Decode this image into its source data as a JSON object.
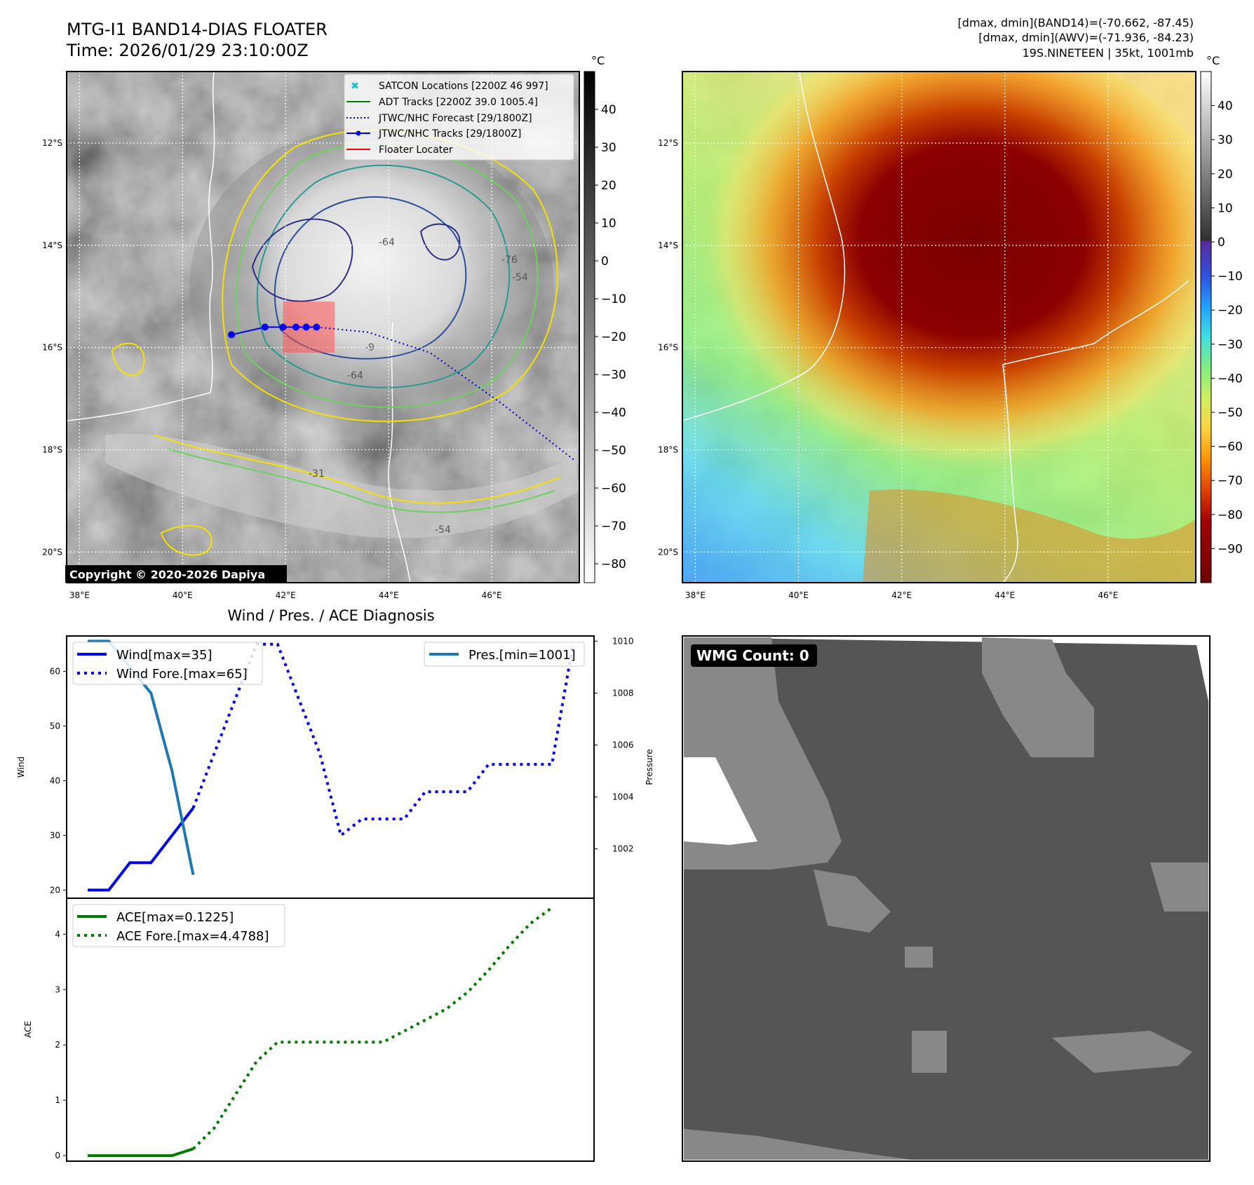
{
  "header": {
    "title_line1": "MTG-I1 BAND14-DIAS FLOATER",
    "title_line2": "Time: 2026/01/29 23:10:00Z",
    "info_line1": "[dmax, dmin](BAND14)=(-70.662, -87.45)",
    "info_line2": "[dmax, dmin](AWV)=(-71.936, -84.23)",
    "info_line3": "19S.NINETEEN | 35kt, 1001mb"
  },
  "map_axes": {
    "lon_ticks": [
      "38°E",
      "40°E",
      "42°E",
      "44°E",
      "46°E"
    ],
    "lon_values": [
      38,
      40,
      42,
      44,
      46
    ],
    "lat_ticks": [
      "12°S",
      "14°S",
      "16°S",
      "18°S",
      "20°S"
    ],
    "lat_values": [
      -12,
      -14,
      -16,
      -18,
      -20
    ],
    "lon_range": [
      37.75,
      47.7
    ],
    "lat_range": [
      -10.6,
      -20.6
    ]
  },
  "colorbar_left": {
    "unit": "°C",
    "ticks": [
      "40",
      "30",
      "20",
      "10",
      "0",
      "−10",
      "−20",
      "−30",
      "−40",
      "−50",
      "−60",
      "−70",
      "−80"
    ],
    "range": [
      -85,
      50
    ]
  },
  "colorbar_right": {
    "unit": "°C",
    "ticks": [
      "40",
      "30",
      "20",
      "10",
      "0",
      "−10",
      "−20",
      "−30",
      "−40",
      "−50",
      "−60",
      "−70",
      "−80",
      "−90"
    ],
    "range": [
      -100,
      50
    ]
  },
  "legend_map": {
    "items": [
      "SATCON Locations [2200Z 46 997]",
      "ADT Tracks [2200Z 39.0 1005.4]",
      "JTWC/NHC Forecast [29/1800Z]",
      "JTWC/NHC Tracks [29/1800Z]",
      "Floater Locater"
    ],
    "colors": [
      "#17becf",
      "#007a00",
      "#0000cc",
      "#0000ee",
      "#ff0000"
    ]
  },
  "contour_labels": [
    "-64",
    "-76",
    "-54",
    "-64",
    "-9",
    "-31",
    "-54"
  ],
  "copyright": "Copyright © 2020-2026 Dapiya",
  "track": {
    "observed": [
      [
        40.95,
        -15.75
      ],
      [
        41.6,
        -15.6
      ],
      [
        41.95,
        -15.6
      ],
      [
        42.2,
        -15.6
      ],
      [
        42.4,
        -15.6
      ],
      [
        42.6,
        -15.6
      ]
    ],
    "forecast": [
      [
        42.6,
        -15.6
      ],
      [
        43.6,
        -15.7
      ],
      [
        44.8,
        -16.1
      ],
      [
        46.2,
        -17.1
      ],
      [
        47.6,
        -18.2
      ]
    ]
  },
  "floater_box": {
    "lon": [
      41.95,
      42.95
    ],
    "lat": [
      -15.1,
      -16.1
    ]
  },
  "wmg_label": "WMG Count: 0",
  "chart_data": [
    {
      "type": "line",
      "title": "Wind / Pres. / ACE Diagnosis",
      "ylabel": "Wind",
      "y2label": "Pressure",
      "ylim": [
        18.5,
        66.5
      ],
      "y2lim": [
        1000.1,
        1010.2
      ],
      "yticks": [
        20,
        30,
        40,
        50,
        60
      ],
      "y2ticks": [
        1002,
        1004,
        1006,
        1008,
        1010
      ],
      "x": [
        0,
        1,
        2,
        3,
        4,
        5,
        6,
        7,
        8,
        9,
        10,
        11,
        12,
        13,
        14,
        15,
        16,
        17,
        18,
        19,
        20,
        21,
        22,
        23
      ],
      "series": [
        {
          "name": "Wind[max=35]",
          "style": "solid",
          "color": "#0000ee",
          "axis": "left",
          "values": [
            20,
            20,
            25,
            25,
            30,
            35,
            null,
            null,
            null,
            null,
            null,
            null,
            null,
            null,
            null,
            null,
            null,
            null,
            null,
            null,
            null,
            null,
            null,
            null
          ]
        },
        {
          "name": "Wind Fore.[max=65]",
          "style": "dotted",
          "color": "#0000ee",
          "axis": "left",
          "values": [
            null,
            null,
            null,
            null,
            null,
            35,
            45,
            55,
            65,
            65,
            55,
            45,
            30,
            33,
            33,
            33,
            38,
            38,
            38,
            43,
            43,
            43,
            43,
            65
          ]
        },
        {
          "name": "Pres.[min=1001]",
          "style": "solid",
          "color": "#1f77b4",
          "axis": "right",
          "values": [
            1010,
            1010,
            1009,
            1008,
            1005,
            1001,
            null,
            null,
            null,
            null,
            null,
            null,
            null,
            null,
            null,
            null,
            null,
            null,
            null,
            null,
            null,
            null,
            null,
            null
          ]
        }
      ]
    },
    {
      "type": "line",
      "ylabel": "ACE",
      "ylim": [
        -0.1,
        4.65
      ],
      "yticks": [
        0,
        1,
        2,
        3,
        4
      ],
      "x": [
        0,
        1,
        2,
        3,
        4,
        5,
        6,
        7,
        8,
        9,
        10,
        11,
        12,
        13,
        14,
        15,
        16,
        17,
        18,
        19,
        20,
        21,
        22,
        23
      ],
      "series": [
        {
          "name": "ACE[max=0.1225]",
          "style": "solid",
          "color": "#007a00",
          "values": [
            0,
            0,
            0,
            0,
            0,
            0.1225,
            null,
            null,
            null,
            null,
            null,
            null,
            null,
            null,
            null,
            null,
            null,
            null,
            null,
            null,
            null,
            null,
            null,
            null
          ]
        },
        {
          "name": "ACE Fore.[max=4.4788]",
          "style": "dotted",
          "color": "#007a00",
          "values": [
            null,
            null,
            null,
            null,
            null,
            0.1225,
            0.5,
            1.1,
            1.7,
            2.05,
            2.05,
            2.05,
            2.05,
            2.05,
            2.05,
            2.25,
            2.45,
            2.65,
            2.95,
            3.35,
            3.8,
            4.2,
            4.4788,
            null
          ]
        }
      ]
    }
  ]
}
